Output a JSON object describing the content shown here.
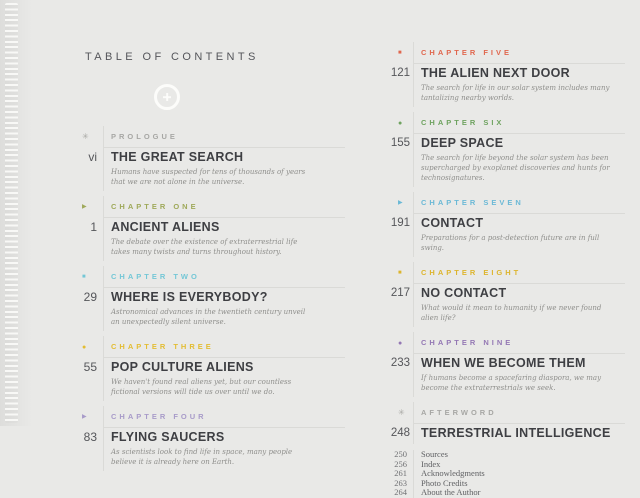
{
  "page": {
    "title": "TABLE OF CONTENTS"
  },
  "columns": {
    "left": {
      "entries": [
        {
          "icon": "asterisk",
          "color": "#a7a7a4",
          "label": "PROLOGUE",
          "page": "vi",
          "title": "THE GREAT SEARCH",
          "desc": "Humans have suspected for tens of thousands of years that we are not alone in the universe."
        },
        {
          "icon": "triangle",
          "color": "#9fa95a",
          "label": "CHAPTER ONE",
          "page": "1",
          "title": "ANCIENT ALIENS",
          "desc": "The debate over the existence of extraterrestrial life takes many twists and turns throughout history."
        },
        {
          "icon": "square",
          "color": "#74c7d6",
          "label": "CHAPTER TWO",
          "page": "29",
          "title": "WHERE IS EVERYBODY?",
          "desc": "Astronomical advances in the twentieth century unveil an unexpectedly silent universe."
        },
        {
          "icon": "circle",
          "color": "#e3bd33",
          "label": "CHAPTER THREE",
          "page": "55",
          "title": "POP CULTURE ALIENS",
          "desc": "We haven't found real aliens yet, but our countless fictional versions will tide us over until we do."
        },
        {
          "icon": "triangle",
          "color": "#a89bc9",
          "label": "CHAPTER FOUR",
          "page": "83",
          "title": "FLYING SAUCERS",
          "desc": "As scientists look to find life in space, many people believe it is already here on Earth."
        }
      ]
    },
    "right": {
      "entries": [
        {
          "icon": "square",
          "color": "#e0674e",
          "label": "CHAPTER FIVE",
          "page": "121",
          "title": "THE ALIEN NEXT DOOR",
          "desc": "The search for life in our solar system includes many tantalizing nearby worlds."
        },
        {
          "icon": "circle",
          "color": "#6fa360",
          "label": "CHAPTER SIX",
          "page": "155",
          "title": "DEEP SPACE",
          "desc": "The search for life beyond the solar system has been supercharged by exoplanet discoveries and hunts for technosignatures."
        },
        {
          "icon": "triangle",
          "color": "#6bb9d6",
          "label": "CHAPTER SEVEN",
          "page": "191",
          "title": "CONTACT",
          "desc": "Preparations for a post-detection future are in full swing."
        },
        {
          "icon": "square",
          "color": "#ddb52e",
          "label": "CHAPTER EIGHT",
          "page": "217",
          "title": "NO CONTACT",
          "desc": "What would it mean to humanity if we never found alien life?"
        },
        {
          "icon": "circle",
          "color": "#9478b4",
          "label": "CHAPTER NINE",
          "page": "233",
          "title": "WHEN WE BECOME THEM",
          "desc": "If humans become a spacefaring diaspora, we may become the extraterrestrials we seek."
        },
        {
          "icon": "asterisk",
          "color": "#a7a7a4",
          "label": "AFTERWORD",
          "page": "248",
          "title": "TERRESTRIAL INTELLIGENCE",
          "desc": ""
        }
      ],
      "backmatter": [
        {
          "page": "250",
          "title": "Sources"
        },
        {
          "page": "256",
          "title": "Index"
        },
        {
          "page": "261",
          "title": "Acknowledgments"
        },
        {
          "page": "263",
          "title": "Photo Credits"
        },
        {
          "page": "264",
          "title": "About the Author"
        }
      ]
    }
  }
}
